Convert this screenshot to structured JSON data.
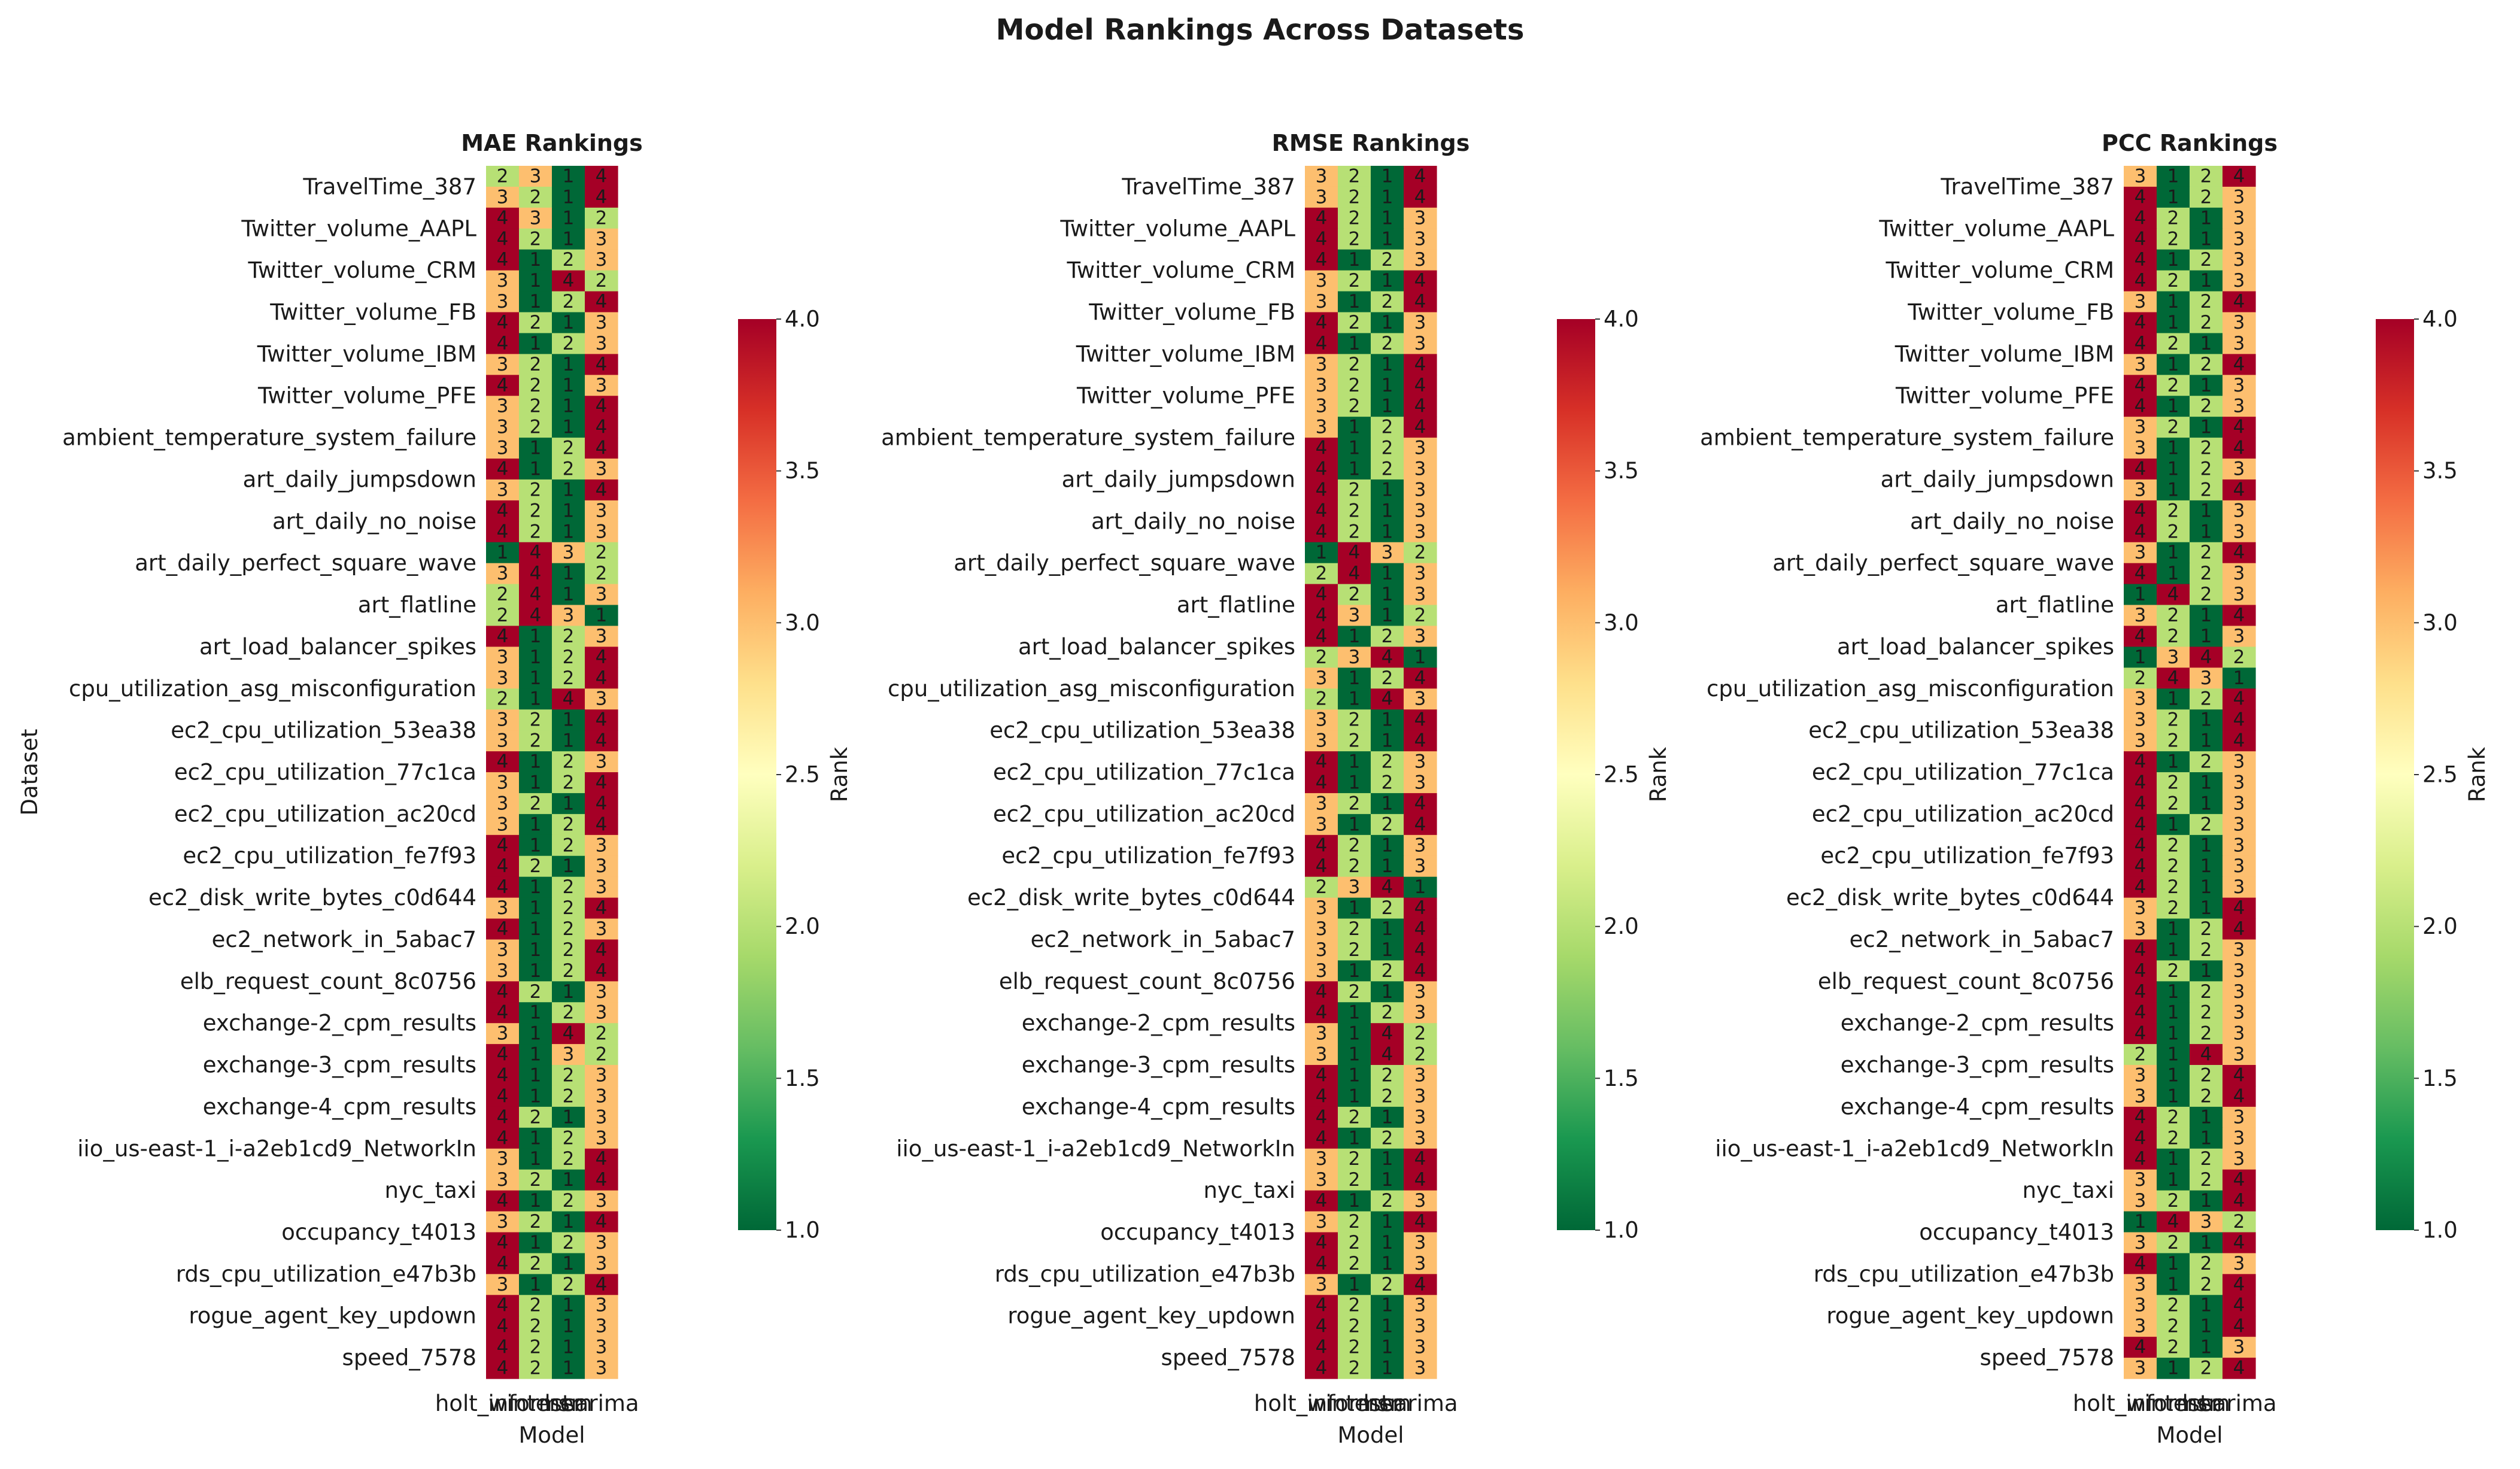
{
  "figure_title": "Model Rankings Across Datasets",
  "chart_data": [
    {
      "type": "heatmap",
      "title": "MAE Rankings",
      "ylabel": "Dataset",
      "xlabel": "Model",
      "colorbar_label": "Rank",
      "colorbar_ticks": [
        "1.0",
        "1.5",
        "2.0",
        "2.5",
        "3.0",
        "3.5",
        "4.0"
      ],
      "columns": [
        "holt_winters",
        "informer",
        "lstm",
        "sarima"
      ],
      "row_labels": [
        "TravelTime_387",
        "Twitter_volume_AAPL",
        "Twitter_volume_CRM",
        "Twitter_volume_FB",
        "Twitter_volume_IBM",
        "Twitter_volume_PFE",
        "ambient_temperature_system_failure",
        "art_daily_jumpsdown",
        "art_daily_no_noise",
        "art_daily_perfect_square_wave",
        "art_flatline",
        "art_load_balancer_spikes",
        "cpu_utilization_asg_misconfiguration",
        "ec2_cpu_utilization_53ea38",
        "ec2_cpu_utilization_77c1ca",
        "ec2_cpu_utilization_ac20cd",
        "ec2_cpu_utilization_fe7f93",
        "ec2_disk_write_bytes_c0d644",
        "ec2_network_in_5abac7",
        "elb_request_count_8c0756",
        "exchange-2_cpm_results",
        "exchange-3_cpm_results",
        "exchange-4_cpm_results",
        "iio_us-east-1_i-a2eb1cd9_NetworkIn",
        "nyc_taxi",
        "occupancy_t4013",
        "rds_cpu_utilization_e47b3b",
        "rogue_agent_key_updown",
        "speed_7578"
      ],
      "rows": [
        [
          2,
          3,
          1,
          4
        ],
        [
          3,
          2,
          1,
          4
        ],
        [
          4,
          3,
          1,
          2
        ],
        [
          4,
          2,
          1,
          3
        ],
        [
          4,
          1,
          2,
          3
        ],
        [
          3,
          1,
          4,
          2
        ],
        [
          3,
          1,
          2,
          4
        ],
        [
          4,
          2,
          1,
          3
        ],
        [
          4,
          1,
          2,
          3
        ],
        [
          3,
          2,
          1,
          4
        ],
        [
          4,
          2,
          1,
          3
        ],
        [
          3,
          2,
          1,
          4
        ],
        [
          3,
          2,
          1,
          4
        ],
        [
          3,
          1,
          2,
          4
        ],
        [
          4,
          1,
          2,
          3
        ],
        [
          3,
          2,
          1,
          4
        ],
        [
          4,
          2,
          1,
          3
        ],
        [
          4,
          2,
          1,
          3
        ],
        [
          1,
          4,
          3,
          2
        ],
        [
          3,
          4,
          1,
          2
        ],
        [
          2,
          4,
          1,
          3
        ],
        [
          2,
          4,
          3,
          1
        ],
        [
          4,
          1,
          2,
          3
        ],
        [
          3,
          1,
          2,
          4
        ],
        [
          3,
          1,
          2,
          4
        ],
        [
          2,
          1,
          4,
          3
        ],
        [
          3,
          2,
          1,
          4
        ],
        [
          3,
          2,
          1,
          4
        ],
        [
          4,
          1,
          2,
          3
        ],
        [
          3,
          1,
          2,
          4
        ],
        [
          3,
          2,
          1,
          4
        ],
        [
          3,
          1,
          2,
          4
        ],
        [
          4,
          1,
          2,
          3
        ],
        [
          4,
          2,
          1,
          3
        ],
        [
          4,
          1,
          2,
          3
        ],
        [
          3,
          1,
          2,
          4
        ],
        [
          4,
          1,
          2,
          3
        ],
        [
          3,
          1,
          2,
          4
        ],
        [
          3,
          1,
          2,
          4
        ],
        [
          4,
          2,
          1,
          3
        ],
        [
          4,
          1,
          2,
          3
        ],
        [
          3,
          1,
          4,
          2
        ],
        [
          4,
          1,
          3,
          2
        ],
        [
          4,
          1,
          2,
          3
        ],
        [
          4,
          1,
          2,
          3
        ],
        [
          4,
          2,
          1,
          3
        ],
        [
          4,
          1,
          2,
          3
        ],
        [
          3,
          1,
          2,
          4
        ],
        [
          3,
          2,
          1,
          4
        ],
        [
          4,
          1,
          2,
          3
        ],
        [
          3,
          2,
          1,
          4
        ],
        [
          4,
          1,
          2,
          3
        ],
        [
          4,
          2,
          1,
          3
        ],
        [
          3,
          1,
          2,
          4
        ],
        [
          4,
          2,
          1,
          3
        ],
        [
          4,
          2,
          1,
          3
        ],
        [
          4,
          2,
          1,
          3
        ],
        [
          4,
          2,
          1,
          3
        ]
      ]
    },
    {
      "type": "heatmap",
      "title": "RMSE Rankings",
      "ylabel": "",
      "xlabel": "Model",
      "colorbar_label": "Rank",
      "colorbar_ticks": [
        "1.0",
        "1.5",
        "2.0",
        "2.5",
        "3.0",
        "3.5",
        "4.0"
      ],
      "columns": [
        "holt_winters",
        "informer",
        "lstm",
        "sarima"
      ],
      "row_labels": [
        "TravelTime_387",
        "Twitter_volume_AAPL",
        "Twitter_volume_CRM",
        "Twitter_volume_FB",
        "Twitter_volume_IBM",
        "Twitter_volume_PFE",
        "ambient_temperature_system_failure",
        "art_daily_jumpsdown",
        "art_daily_no_noise",
        "art_daily_perfect_square_wave",
        "art_flatline",
        "art_load_balancer_spikes",
        "cpu_utilization_asg_misconfiguration",
        "ec2_cpu_utilization_53ea38",
        "ec2_cpu_utilization_77c1ca",
        "ec2_cpu_utilization_ac20cd",
        "ec2_cpu_utilization_fe7f93",
        "ec2_disk_write_bytes_c0d644",
        "ec2_network_in_5abac7",
        "elb_request_count_8c0756",
        "exchange-2_cpm_results",
        "exchange-3_cpm_results",
        "exchange-4_cpm_results",
        "iio_us-east-1_i-a2eb1cd9_NetworkIn",
        "nyc_taxi",
        "occupancy_t4013",
        "rds_cpu_utilization_e47b3b",
        "rogue_agent_key_updown",
        "speed_7578"
      ],
      "rows": [
        [
          3,
          2,
          1,
          4
        ],
        [
          3,
          2,
          1,
          4
        ],
        [
          4,
          2,
          1,
          3
        ],
        [
          4,
          2,
          1,
          3
        ],
        [
          4,
          1,
          2,
          3
        ],
        [
          3,
          2,
          1,
          4
        ],
        [
          3,
          1,
          2,
          4
        ],
        [
          4,
          2,
          1,
          3
        ],
        [
          4,
          1,
          2,
          3
        ],
        [
          3,
          2,
          1,
          4
        ],
        [
          3,
          2,
          1,
          4
        ],
        [
          3,
          2,
          1,
          4
        ],
        [
          3,
          1,
          2,
          4
        ],
        [
          4,
          1,
          2,
          3
        ],
        [
          4,
          1,
          2,
          3
        ],
        [
          4,
          2,
          1,
          3
        ],
        [
          4,
          2,
          1,
          3
        ],
        [
          4,
          2,
          1,
          3
        ],
        [
          1,
          4,
          3,
          2
        ],
        [
          2,
          4,
          1,
          3
        ],
        [
          4,
          2,
          1,
          3
        ],
        [
          4,
          3,
          1,
          2
        ],
        [
          4,
          1,
          2,
          3
        ],
        [
          2,
          3,
          4,
          1
        ],
        [
          3,
          1,
          2,
          4
        ],
        [
          2,
          1,
          4,
          3
        ],
        [
          3,
          2,
          1,
          4
        ],
        [
          3,
          2,
          1,
          4
        ],
        [
          4,
          1,
          2,
          3
        ],
        [
          4,
          1,
          2,
          3
        ],
        [
          3,
          2,
          1,
          4
        ],
        [
          3,
          1,
          2,
          4
        ],
        [
          4,
          2,
          1,
          3
        ],
        [
          4,
          2,
          1,
          3
        ],
        [
          2,
          3,
          4,
          1
        ],
        [
          3,
          1,
          2,
          4
        ],
        [
          3,
          2,
          1,
          4
        ],
        [
          3,
          2,
          1,
          4
        ],
        [
          3,
          1,
          2,
          4
        ],
        [
          4,
          2,
          1,
          3
        ],
        [
          4,
          1,
          2,
          3
        ],
        [
          3,
          1,
          4,
          2
        ],
        [
          3,
          1,
          4,
          2
        ],
        [
          4,
          1,
          2,
          3
        ],
        [
          4,
          1,
          2,
          3
        ],
        [
          4,
          2,
          1,
          3
        ],
        [
          4,
          1,
          2,
          3
        ],
        [
          3,
          2,
          1,
          4
        ],
        [
          3,
          2,
          1,
          4
        ],
        [
          4,
          1,
          2,
          3
        ],
        [
          3,
          2,
          1,
          4
        ],
        [
          4,
          2,
          1,
          3
        ],
        [
          4,
          2,
          1,
          3
        ],
        [
          3,
          1,
          2,
          4
        ],
        [
          4,
          2,
          1,
          3
        ],
        [
          4,
          2,
          1,
          3
        ],
        [
          4,
          2,
          1,
          3
        ],
        [
          4,
          2,
          1,
          3
        ]
      ]
    },
    {
      "type": "heatmap",
      "title": "PCC Rankings",
      "ylabel": "",
      "xlabel": "Model",
      "colorbar_label": "Rank",
      "colorbar_ticks": [
        "1.0",
        "1.5",
        "2.0",
        "2.5",
        "3.0",
        "3.5",
        "4.0"
      ],
      "columns": [
        "holt_winters",
        "informer",
        "lstm",
        "sarima"
      ],
      "row_labels": [
        "TravelTime_387",
        "Twitter_volume_AAPL",
        "Twitter_volume_CRM",
        "Twitter_volume_FB",
        "Twitter_volume_IBM",
        "Twitter_volume_PFE",
        "ambient_temperature_system_failure",
        "art_daily_jumpsdown",
        "art_daily_no_noise",
        "art_daily_perfect_square_wave",
        "art_flatline",
        "art_load_balancer_spikes",
        "cpu_utilization_asg_misconfiguration",
        "ec2_cpu_utilization_53ea38",
        "ec2_cpu_utilization_77c1ca",
        "ec2_cpu_utilization_ac20cd",
        "ec2_cpu_utilization_fe7f93",
        "ec2_disk_write_bytes_c0d644",
        "ec2_network_in_5abac7",
        "elb_request_count_8c0756",
        "exchange-2_cpm_results",
        "exchange-3_cpm_results",
        "exchange-4_cpm_results",
        "iio_us-east-1_i-a2eb1cd9_NetworkIn",
        "nyc_taxi",
        "occupancy_t4013",
        "rds_cpu_utilization_e47b3b",
        "rogue_agent_key_updown",
        "speed_7578"
      ],
      "rows": [
        [
          3,
          1,
          2,
          4
        ],
        [
          4,
          1,
          2,
          3
        ],
        [
          4,
          2,
          1,
          3
        ],
        [
          4,
          2,
          1,
          3
        ],
        [
          4,
          1,
          2,
          3
        ],
        [
          4,
          2,
          1,
          3
        ],
        [
          3,
          1,
          2,
          4
        ],
        [
          4,
          1,
          2,
          3
        ],
        [
          4,
          2,
          1,
          3
        ],
        [
          3,
          1,
          2,
          4
        ],
        [
          4,
          2,
          1,
          3
        ],
        [
          4,
          1,
          2,
          3
        ],
        [
          3,
          2,
          1,
          4
        ],
        [
          3,
          1,
          2,
          4
        ],
        [
          4,
          1,
          2,
          3
        ],
        [
          3,
          1,
          2,
          4
        ],
        [
          4,
          2,
          1,
          3
        ],
        [
          4,
          2,
          1,
          3
        ],
        [
          3,
          1,
          2,
          4
        ],
        [
          4,
          1,
          2,
          3
        ],
        [
          1,
          4,
          2,
          3
        ],
        [
          3,
          2,
          1,
          4
        ],
        [
          4,
          2,
          1,
          3
        ],
        [
          1,
          3,
          4,
          2
        ],
        [
          2,
          4,
          3,
          1
        ],
        [
          3,
          1,
          2,
          4
        ],
        [
          3,
          2,
          1,
          4
        ],
        [
          3,
          2,
          1,
          4
        ],
        [
          4,
          1,
          2,
          3
        ],
        [
          4,
          2,
          1,
          3
        ],
        [
          4,
          2,
          1,
          3
        ],
        [
          4,
          1,
          2,
          3
        ],
        [
          4,
          2,
          1,
          3
        ],
        [
          4,
          2,
          1,
          3
        ],
        [
          4,
          2,
          1,
          3
        ],
        [
          3,
          2,
          1,
          4
        ],
        [
          3,
          1,
          2,
          4
        ],
        [
          4,
          1,
          2,
          3
        ],
        [
          4,
          2,
          1,
          3
        ],
        [
          4,
          1,
          2,
          3
        ],
        [
          4,
          1,
          2,
          3
        ],
        [
          4,
          1,
          2,
          3
        ],
        [
          2,
          1,
          4,
          3
        ],
        [
          3,
          1,
          2,
          4
        ],
        [
          3,
          1,
          2,
          4
        ],
        [
          4,
          2,
          1,
          3
        ],
        [
          4,
          2,
          1,
          3
        ],
        [
          4,
          1,
          2,
          3
        ],
        [
          3,
          1,
          2,
          4
        ],
        [
          3,
          2,
          1,
          4
        ],
        [
          1,
          4,
          3,
          2
        ],
        [
          3,
          2,
          1,
          4
        ],
        [
          4,
          1,
          2,
          3
        ],
        [
          3,
          1,
          2,
          4
        ],
        [
          3,
          2,
          1,
          4
        ],
        [
          3,
          2,
          1,
          4
        ],
        [
          4,
          2,
          1,
          3
        ],
        [
          3,
          1,
          2,
          4
        ]
      ]
    }
  ]
}
